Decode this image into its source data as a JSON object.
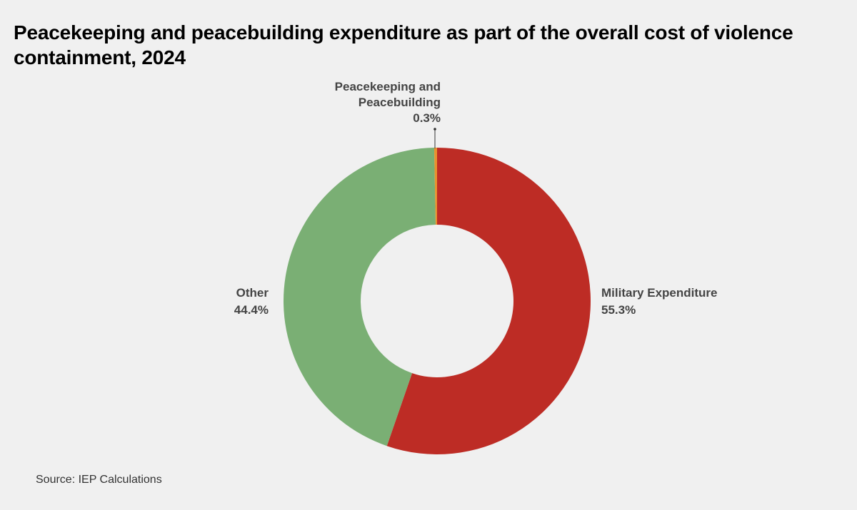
{
  "title": "Peacekeeping and peacebuilding expenditure as part of the overall cost of violence containment, 2024",
  "source": "Source: IEP Calculations",
  "chart_data": {
    "type": "pie",
    "variant": "donut",
    "title": "Peacekeeping and peacebuilding expenditure as part of the overall cost of violence containment, 2024",
    "categories": [
      "Military Expenditure",
      "Other",
      "Peacekeeping and Peacebuilding"
    ],
    "values": [
      55.3,
      44.4,
      0.3
    ],
    "unit": "%",
    "colors": [
      "#bd2c25",
      "#7aaf74",
      "#e8912e"
    ],
    "labels": [
      {
        "lines": [
          "Military Expenditure"
        ],
        "value": "55.3%"
      },
      {
        "lines": [
          "Other"
        ],
        "value": "44.4%"
      },
      {
        "lines": [
          "Peacekeeping and",
          "Peacebuilding"
        ],
        "value": "0.3%"
      }
    ],
    "legend": "none"
  }
}
